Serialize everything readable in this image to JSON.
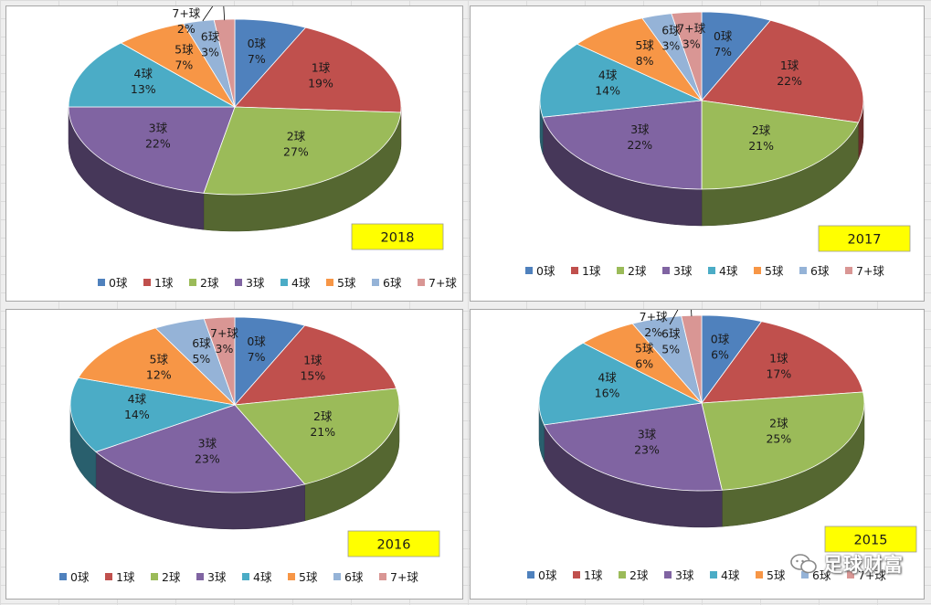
{
  "watermark": {
    "text": "足球财富",
    "icon": "wechat-icon"
  },
  "colors": [
    "#4F81BD",
    "#C0504D",
    "#9BBB59",
    "#8064A2",
    "#4BACC6",
    "#F79646",
    "#95B3D7",
    "#D99694"
  ],
  "legend_labels": [
    "0球",
    "1球",
    "2球",
    "3球",
    "4球",
    "5球",
    "6球",
    "7+球"
  ],
  "chart_data": [
    {
      "type": "pie",
      "title": "",
      "badge": "2018",
      "categories": [
        "0球",
        "1球",
        "2球",
        "3球",
        "4球",
        "5球",
        "6球",
        "7+球"
      ],
      "values": [
        7,
        19,
        27,
        22,
        13,
        7,
        3,
        2
      ],
      "value_labels": [
        "7%",
        "19%",
        "27%",
        "22%",
        "13%",
        "7%",
        "3%",
        "2%"
      ],
      "legend": "bottom"
    },
    {
      "type": "pie",
      "title": "",
      "badge": "2017",
      "categories": [
        "0球",
        "1球",
        "2球",
        "3球",
        "4球",
        "5球",
        "6球",
        "7+球"
      ],
      "values": [
        7,
        22,
        21,
        22,
        14,
        8,
        3,
        3
      ],
      "value_labels": [
        "7%",
        "22%",
        "21%",
        "22%",
        "14%",
        "8%",
        "3%",
        "3%"
      ],
      "legend": "bottom"
    },
    {
      "type": "pie",
      "title": "",
      "badge": "2016",
      "categories": [
        "0球",
        "1球",
        "2球",
        "3球",
        "4球",
        "5球",
        "6球",
        "7+球"
      ],
      "values": [
        7,
        15,
        21,
        23,
        14,
        12,
        5,
        3
      ],
      "value_labels": [
        "7%",
        "15%",
        "21%",
        "23%",
        "14%",
        "12%",
        "5%",
        "3%"
      ],
      "legend": "bottom"
    },
    {
      "type": "pie",
      "title": "",
      "badge": "2015",
      "categories": [
        "0球",
        "1球",
        "2球",
        "3球",
        "4球",
        "5球",
        "6球",
        "7+球"
      ],
      "values": [
        6,
        17,
        25,
        23,
        16,
        6,
        5,
        2
      ],
      "value_labels": [
        "6%",
        "17%",
        "25%",
        "23%",
        "16%",
        "6%",
        "5%",
        "2%"
      ],
      "legend": "bottom"
    }
  ]
}
